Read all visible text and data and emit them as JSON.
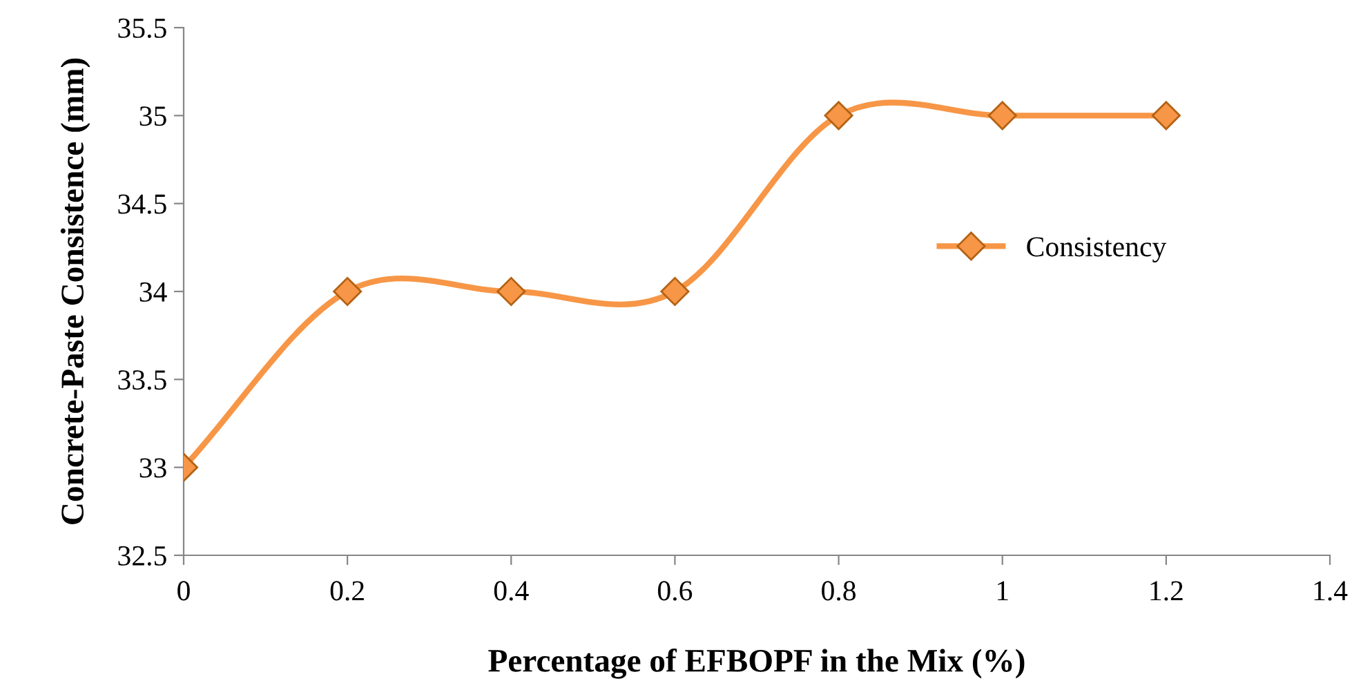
{
  "chart_data": {
    "type": "line",
    "xlabel": "Percentage of EFBOPF in the Mix (%)",
    "ylabel": "Concrete-Paste Consistence (mm)",
    "x": [
      0,
      0.2,
      0.4,
      0.6,
      0.8,
      1,
      1.2
    ],
    "series": [
      {
        "name": "Consistency",
        "color": "#f79646",
        "values": [
          33,
          34,
          34,
          34,
          35,
          35,
          35
        ]
      }
    ],
    "xlim": [
      0,
      1.4
    ],
    "xticks": [
      0,
      0.2,
      0.4,
      0.6,
      0.8,
      1,
      1.2,
      1.4
    ],
    "ylim": [
      32.5,
      35.5
    ],
    "yticks": [
      32.5,
      33,
      33.5,
      34,
      34.5,
      35,
      35.5
    ],
    "marker": "diamond",
    "line_style": "solid",
    "legend": "right"
  }
}
